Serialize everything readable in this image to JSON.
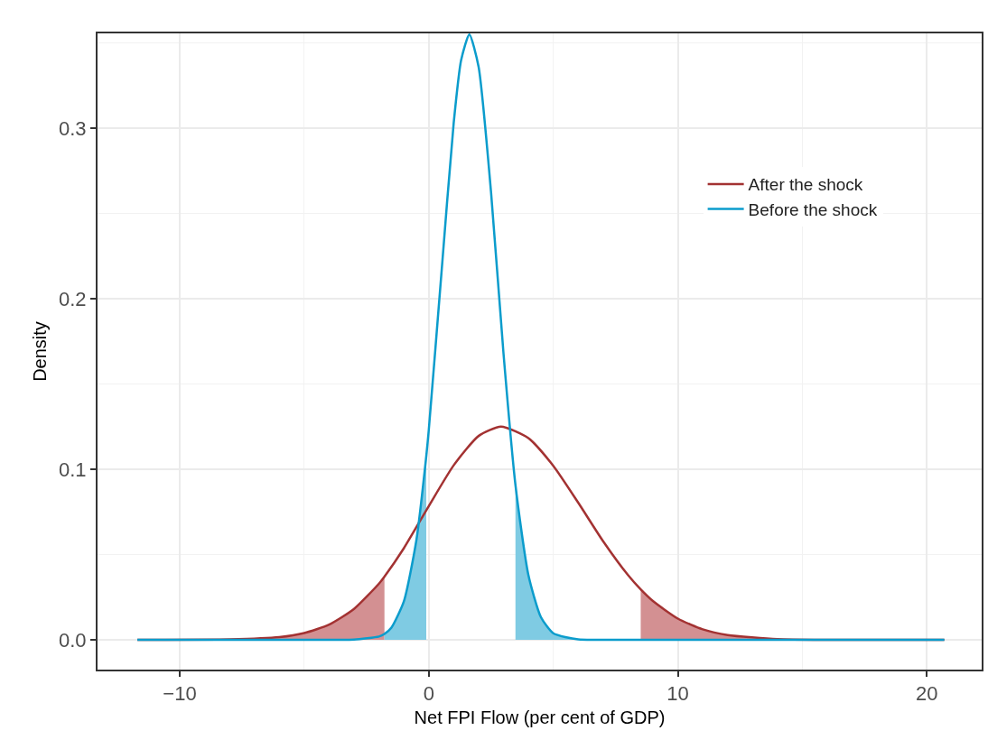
{
  "chart_data": {
    "type": "line",
    "xlabel": "Net FPI Flow (per cent of GDP)",
    "ylabel": "Density",
    "xlim": [
      -13.3,
      22.2
    ],
    "xticks": [
      {
        "value": -10,
        "label": "−10"
      },
      0,
      10,
      20
    ],
    "ylim": [
      -0.0175,
      0.3556
    ],
    "yticks": [
      {
        "value": 0,
        "label": "0.0"
      },
      0.1,
      0.2,
      0.3
    ],
    "grid": true,
    "legend": "top right",
    "marker": "none",
    "line_style": "solid",
    "series": [
      {
        "type": "area",
        "color": "#d39092",
        "x": [
          -11.7,
          -8,
          -6,
          -5,
          -4,
          -3,
          -2,
          -1.78
        ],
        "values": [
          0,
          0.0002,
          0.0015,
          0.0039,
          0.0089,
          0.0181,
          0.0329,
          0.037
        ]
      },
      {
        "type": "area",
        "color": "#d39092",
        "x": [
          8.51,
          9,
          10,
          11,
          12,
          14,
          16,
          20.7
        ],
        "values": [
          0.0295,
          0.0227,
          0.0124,
          0.0061,
          0.0028,
          0.0004,
          0,
          0
        ]
      },
      {
        "type": "area",
        "color": "#7fcbe3",
        "x": [
          -1.78,
          -1.5,
          -1,
          -0.5,
          -0.1
        ],
        "values": [
          0.0034,
          0.0071,
          0.0225,
          0.0582,
          0.1077
        ]
      },
      {
        "type": "area",
        "color": "#7fcbe3",
        "x": [
          3.48,
          4,
          4.5,
          5,
          6,
          7.1
        ],
        "values": [
          0.0908,
          0.0379,
          0.0133,
          0.0038,
          0.0002,
          0
        ]
      },
      {
        "name": "After the shock",
        "color": "#a33232",
        "x": [
          -11.7,
          -8,
          -6,
          -5,
          -4,
          -3,
          -2,
          -1.78,
          -1,
          0,
          1,
          2,
          2.9,
          4,
          5,
          6,
          7,
          8,
          8.51,
          9,
          10,
          11,
          12,
          14,
          16,
          20.7
        ],
        "values": [
          0,
          0.0002,
          0.0015,
          0.0039,
          0.0089,
          0.0181,
          0.0329,
          0.037,
          0.0537,
          0.0784,
          0.1023,
          0.1195,
          0.125,
          0.1182,
          0.102,
          0.0804,
          0.0578,
          0.0379,
          0.0295,
          0.0227,
          0.0124,
          0.0061,
          0.0028,
          0.0004,
          0,
          0
        ]
      },
      {
        "name": "Before the shock",
        "color": "#0b9ccc",
        "x": [
          -11.7,
          -4,
          -3,
          -2,
          -1.78,
          -1.5,
          -1,
          -0.5,
          -0.1,
          0,
          0.5,
          1,
          1.3,
          1.63,
          2,
          2.5,
          3,
          3.48,
          4,
          4.5,
          5,
          6,
          7.1,
          20.7
        ],
        "values": [
          0,
          0,
          0.0001,
          0.0019,
          0.0034,
          0.0071,
          0.0225,
          0.0582,
          0.1077,
          0.123,
          0.2134,
          0.303,
          0.34,
          0.355,
          0.336,
          0.2625,
          0.168,
          0.0908,
          0.0379,
          0.0133,
          0.0038,
          0.0002,
          0,
          0
        ]
      }
    ]
  }
}
